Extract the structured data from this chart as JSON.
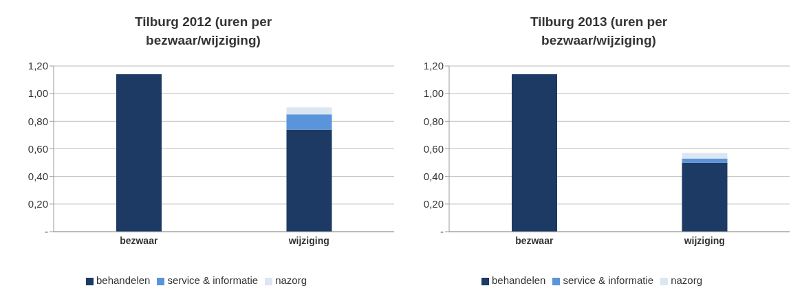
{
  "chart_data": [
    {
      "type": "bar",
      "title": "Tilburg 2012 (uren per bezwaar/wijziging)",
      "categories": [
        "bezwaar",
        "wijziging"
      ],
      "stacked": true,
      "series": [
        {
          "name": "behandelen",
          "color": "#1c3a63",
          "values": [
            1.14,
            0.74
          ]
        },
        {
          "name": "service & informatie",
          "color": "#5a95dc",
          "values": [
            null,
            0.11
          ]
        },
        {
          "name": "nazorg",
          "color": "#dce6f2",
          "values": [
            null,
            0.05
          ]
        }
      ],
      "ylim": [
        0,
        1.2
      ],
      "yticks": [
        {
          "value": 0,
          "label": "-"
        },
        {
          "value": 0.2,
          "label": "0,20"
        },
        {
          "value": 0.4,
          "label": "0,40"
        },
        {
          "value": 0.6,
          "label": "0,60"
        },
        {
          "value": 0.8,
          "label": "0,80"
        },
        {
          "value": 1,
          "label": "1,00"
        },
        {
          "value": 1.2,
          "label": "1,20"
        }
      ],
      "grid": "y",
      "legend": "bottom"
    },
    {
      "type": "bar",
      "title": "Tilburg 2013 (uren per bezwaar/wijziging)",
      "categories": [
        "bezwaar",
        "wijziging"
      ],
      "stacked": true,
      "series": [
        {
          "name": "behandelen",
          "color": "#1c3a63",
          "values": [
            1.14,
            0.5
          ]
        },
        {
          "name": "service & informatie",
          "color": "#5a95dc",
          "values": [
            null,
            0.03
          ]
        },
        {
          "name": "nazorg",
          "color": "#dce6f2",
          "values": [
            null,
            0.04
          ]
        }
      ],
      "ylim": [
        0,
        1.2
      ],
      "yticks": [
        {
          "value": 0,
          "label": "-"
        },
        {
          "value": 0.2,
          "label": "0,20"
        },
        {
          "value": 0.4,
          "label": "0,40"
        },
        {
          "value": 0.6,
          "label": "0,60"
        },
        {
          "value": 0.8,
          "label": "0,80"
        },
        {
          "value": 1,
          "label": "1,00"
        },
        {
          "value": 1.2,
          "label": "1,20"
        }
      ],
      "grid": "y",
      "legend": "bottom"
    }
  ]
}
